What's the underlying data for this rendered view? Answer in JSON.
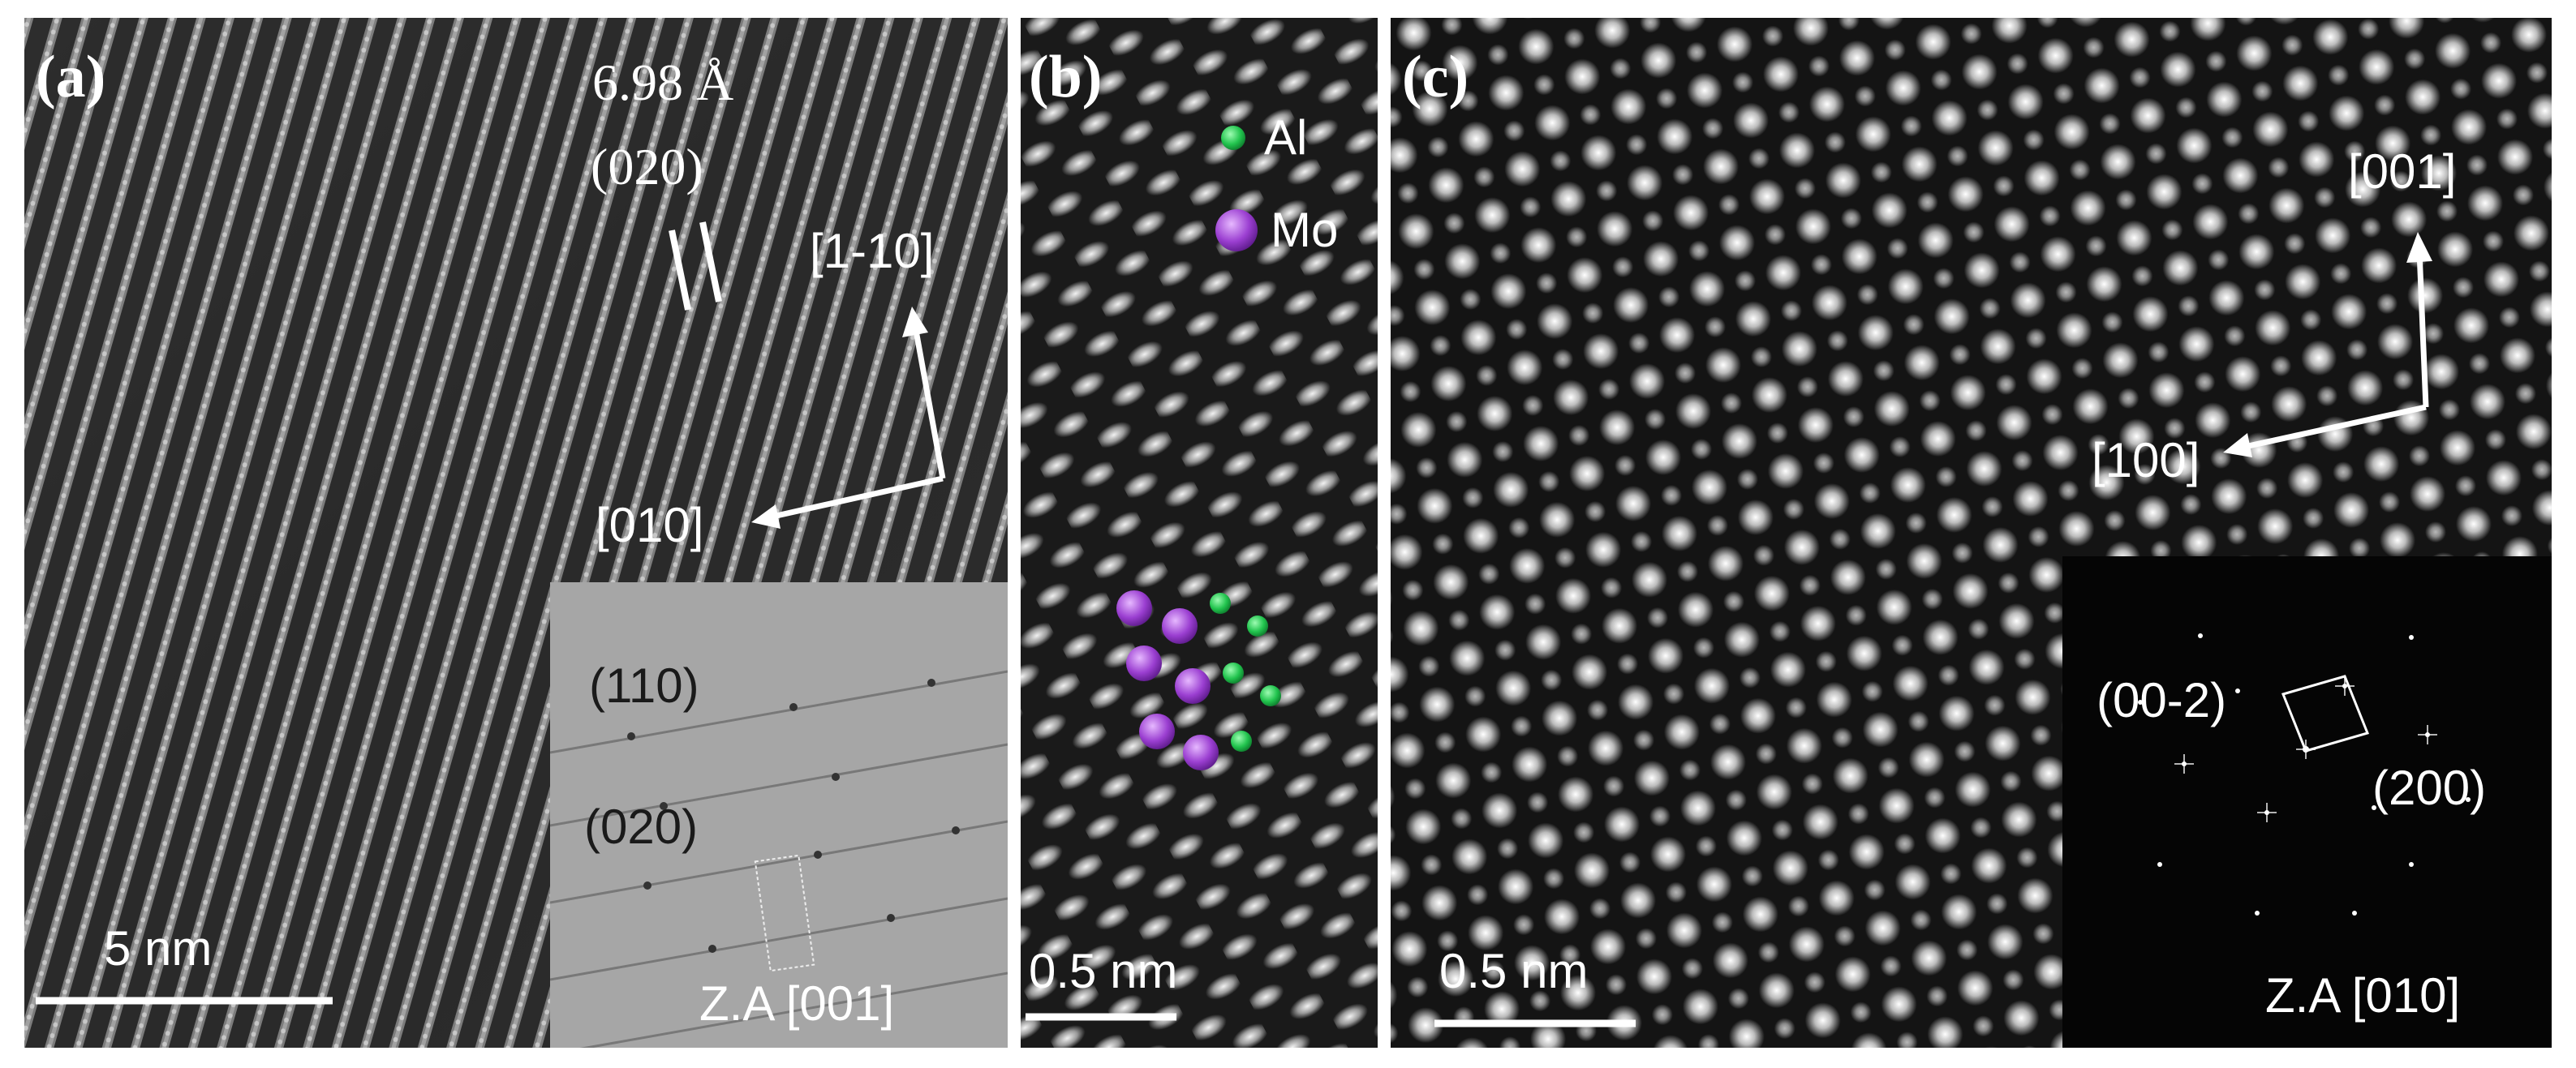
{
  "panels": {
    "a": {
      "label": "(a)",
      "spacing": "6.98 Å",
      "plane": "(020)",
      "dir_up": "[1-10]",
      "dir_left": "[010]",
      "scale": "5 nm",
      "inset": {
        "spot1": "(110)",
        "spot2": "(020)",
        "zone": "Z.A [001]"
      }
    },
    "b": {
      "label": "(b)",
      "legend": [
        {
          "name": "Al",
          "color": "#22c44e"
        },
        {
          "name": "Mo",
          "color": "#9b3fd1"
        }
      ],
      "scale": "0.5 nm"
    },
    "c": {
      "label": "(c)",
      "dir_up": "[001]",
      "dir_left": "[100]",
      "scale": "0.5 nm",
      "inset": {
        "spot1": "(00-2)",
        "spot2": "(200)",
        "zone": "Z.A [010]"
      }
    }
  },
  "colors": {
    "text": "#ffffff",
    "al_atom": "#22c44e",
    "mo_atom": "#9b3fd1"
  }
}
